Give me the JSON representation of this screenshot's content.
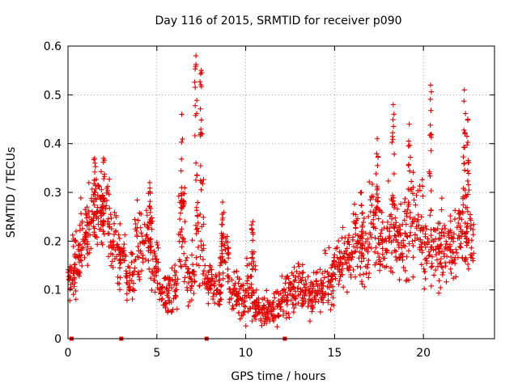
{
  "chart_data": {
    "type": "scatter",
    "title": "Day 116 of 2015, SRMTID for receiver p090",
    "xlabel": "GPS time / hours",
    "ylabel": "SRMTID / TECUs",
    "xlim": [
      0,
      24
    ],
    "ylim": [
      0,
      0.6
    ],
    "x_ticks": [
      "0",
      "5",
      "10",
      "15",
      "20"
    ],
    "y_ticks": [
      "0",
      "0.1",
      "0.2",
      "0.3",
      "0.4",
      "0.5",
      "0.6"
    ],
    "grid": true,
    "marker": "+",
    "color": "#e00000",
    "series": [
      {
        "name": "SRMTID",
        "description": "Dense per-satellite SRMTID samples; values below are representative cluster centers and spreads (hour, value, spread)",
        "clusters": [
          [
            0.2,
            0.12,
            0.04
          ],
          [
            0.5,
            0.16,
            0.05
          ],
          [
            0.9,
            0.22,
            0.06
          ],
          [
            1.3,
            0.24,
            0.06
          ],
          [
            1.7,
            0.26,
            0.07
          ],
          [
            2.1,
            0.28,
            0.06
          ],
          [
            2.5,
            0.2,
            0.06
          ],
          [
            3.0,
            0.17,
            0.05
          ],
          [
            3.5,
            0.13,
            0.05
          ],
          [
            4.0,
            0.19,
            0.07
          ],
          [
            4.5,
            0.22,
            0.06
          ],
          [
            4.9,
            0.15,
            0.05
          ],
          [
            5.4,
            0.09,
            0.04
          ],
          [
            5.9,
            0.1,
            0.05
          ],
          [
            6.4,
            0.2,
            0.1
          ],
          [
            6.9,
            0.12,
            0.06
          ],
          [
            7.4,
            0.2,
            0.12
          ],
          [
            7.9,
            0.12,
            0.04
          ],
          [
            8.4,
            0.1,
            0.04
          ],
          [
            8.8,
            0.18,
            0.06
          ],
          [
            9.3,
            0.1,
            0.04
          ],
          [
            9.8,
            0.08,
            0.04
          ],
          [
            10.3,
            0.1,
            0.05
          ],
          [
            10.7,
            0.06,
            0.03
          ],
          [
            11.2,
            0.06,
            0.03
          ],
          [
            11.7,
            0.06,
            0.03
          ],
          [
            12.2,
            0.09,
            0.04
          ],
          [
            12.7,
            0.1,
            0.04
          ],
          [
            13.2,
            0.11,
            0.04
          ],
          [
            13.7,
            0.09,
            0.04
          ],
          [
            14.2,
            0.1,
            0.04
          ],
          [
            14.7,
            0.12,
            0.05
          ],
          [
            15.2,
            0.15,
            0.05
          ],
          [
            15.7,
            0.17,
            0.06
          ],
          [
            16.2,
            0.2,
            0.06
          ],
          [
            16.7,
            0.18,
            0.07
          ],
          [
            17.2,
            0.24,
            0.08
          ],
          [
            17.7,
            0.2,
            0.07
          ],
          [
            18.2,
            0.22,
            0.08
          ],
          [
            18.7,
            0.19,
            0.07
          ],
          [
            19.2,
            0.23,
            0.09
          ],
          [
            19.7,
            0.24,
            0.08
          ],
          [
            20.2,
            0.2,
            0.08
          ],
          [
            20.7,
            0.18,
            0.07
          ],
          [
            21.2,
            0.2,
            0.07
          ],
          [
            21.7,
            0.19,
            0.06
          ],
          [
            22.2,
            0.24,
            0.07
          ],
          [
            22.6,
            0.2,
            0.07
          ]
        ],
        "peaks": [
          [
            1.5,
            0.37
          ],
          [
            2.0,
            0.37
          ],
          [
            4.6,
            0.32
          ],
          [
            6.4,
            0.46
          ],
          [
            7.2,
            0.58
          ],
          [
            7.5,
            0.55
          ],
          [
            8.7,
            0.28
          ],
          [
            10.4,
            0.24
          ],
          [
            16.5,
            0.3
          ],
          [
            17.4,
            0.41
          ],
          [
            18.3,
            0.48
          ],
          [
            19.2,
            0.44
          ],
          [
            20.4,
            0.52
          ],
          [
            22.3,
            0.51
          ],
          [
            22.5,
            0.45
          ]
        ],
        "bottom_markers": [
          0.2,
          3.0,
          7.8,
          12.2
        ]
      }
    ]
  }
}
